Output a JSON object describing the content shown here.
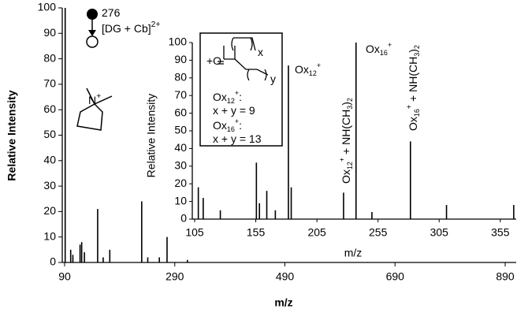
{
  "chart_data": [
    {
      "type": "stem",
      "xlabel": "m/z",
      "ylabel": "Relative Intensity",
      "color": "#000000",
      "x": [
        91,
        101,
        105,
        118,
        121,
        126,
        150,
        160,
        172,
        230,
        241,
        276,
        262,
        313
      ],
      "values": [
        100,
        5,
        3,
        7,
        8,
        4,
        21,
        2,
        5,
        24,
        2,
        10,
        2,
        1
      ],
      "xlim": [
        90,
        910
      ],
      "xticks": [
        90,
        290,
        490,
        690,
        890
      ],
      "ylim": [
        0,
        100
      ],
      "yticks": [
        0,
        10,
        20,
        30,
        40,
        50,
        60,
        70,
        80,
        90,
        100
      ],
      "annotations": [
        [
          {
            "text": "276"
          }
        ],
        [
          {
            "text": "[DG + Cb]"
          },
          {
            "text": "2+",
            "baseline": "super"
          }
        ],
        [
          {
            "text": "N"
          },
          {
            "text": "+",
            "baseline": "super"
          }
        ]
      ]
    },
    {
      "type": "stem",
      "xlabel": "m/z",
      "ylabel": "Relative Intensity",
      "color": "#000000",
      "x": [
        108,
        112,
        126,
        155.5,
        158,
        164,
        171,
        181.7,
        184,
        226.8,
        237,
        250,
        281.5,
        311,
        366
      ],
      "values": [
        18,
        12,
        5,
        32,
        9,
        16,
        5,
        87,
        18,
        15,
        100,
        4,
        44,
        8,
        8
      ],
      "xlim": [
        105,
        368
      ],
      "xticks": [
        105,
        155,
        205,
        255,
        305,
        355
      ],
      "ylim": [
        0,
        100
      ],
      "yticks": [
        0,
        10,
        20,
        30,
        40,
        50,
        60,
        70,
        80,
        90,
        100
      ],
      "annotations": [
        [
          {
            "text": "Ox"
          },
          {
            "text": "12",
            "baseline": "sub"
          },
          {
            "text": "+",
            "baseline": "super"
          }
        ],
        [
          {
            "text": "Ox"
          },
          {
            "text": "16",
            "baseline": "sub"
          },
          {
            "text": "+",
            "baseline": "super"
          }
        ],
        [
          {
            "text": "Ox"
          },
          {
            "text": "12",
            "baseline": "sub"
          },
          {
            "text": "+",
            "baseline": "super"
          },
          {
            "text": " + NH(CH"
          },
          {
            "text": "3",
            "baseline": "sub"
          },
          {
            "text": ")"
          },
          {
            "text": "2",
            "baseline": "sub"
          }
        ],
        [
          {
            "text": "Ox"
          },
          {
            "text": "16",
            "baseline": "sub"
          },
          {
            "text": "+",
            "baseline": "super"
          },
          {
            "text": " + NH(CH"
          },
          {
            "text": "3",
            "baseline": "sub"
          },
          {
            "text": ")"
          },
          {
            "text": "2",
            "baseline": "sub"
          }
        ],
        [
          {
            "text": "+O"
          }
        ],
        [
          {
            "text": "x"
          }
        ],
        [
          {
            "text": "y"
          }
        ],
        [
          {
            "text": "Ox"
          },
          {
            "text": "12",
            "baseline": "sub"
          },
          {
            "text": "+",
            "baseline": "super"
          },
          {
            "text": ":"
          }
        ],
        [
          {
            "text": "x + y = 9"
          }
        ],
        [
          {
            "text": "Ox"
          },
          {
            "text": "16",
            "baseline": "sub"
          },
          {
            "text": "+",
            "baseline": "super"
          },
          {
            "text": ":"
          }
        ],
        [
          {
            "text": "x + y = 13"
          }
        ]
      ]
    }
  ]
}
